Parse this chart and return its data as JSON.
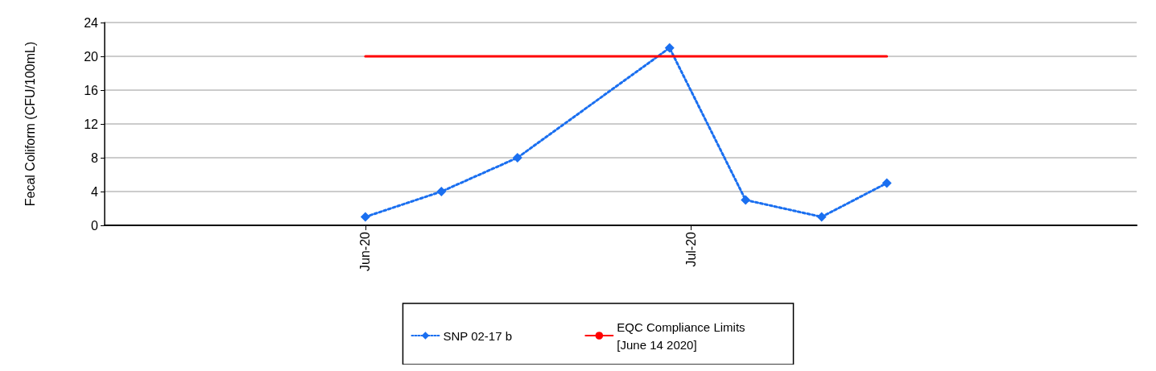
{
  "chart_data": {
    "type": "line",
    "ylabel": "Fecal Coliform (CFU/100mL)",
    "xlim": [
      "2020-05-08",
      "2020-08-11"
    ],
    "xticks": [
      {
        "value": "2020-06-01",
        "label": "Jun-20"
      },
      {
        "value": "2020-07-01",
        "label": "Jul-20"
      }
    ],
    "ylim": [
      0,
      24
    ],
    "yticks": [
      0,
      4,
      8,
      12,
      16,
      20,
      24
    ],
    "grid": "y",
    "legend": "bottom",
    "series": [
      {
        "name": "SNP 02-17 b",
        "color": "#1a6ff0",
        "marker": "diamond",
        "line_style": "dotted",
        "x": [
          "2020-06-01",
          "2020-06-08",
          "2020-06-15",
          "2020-06-29",
          "2020-07-06",
          "2020-07-13",
          "2020-07-19"
        ],
        "values": [
          1,
          4,
          8,
          21,
          3,
          1,
          5
        ]
      },
      {
        "name": "EQC Compliance Limits\n[June 14 2020]",
        "color": "#ff0000",
        "marker": "none",
        "line_style": "solid",
        "x": [
          "2020-06-01",
          "2020-07-19"
        ],
        "values": [
          20,
          20
        ]
      }
    ]
  }
}
